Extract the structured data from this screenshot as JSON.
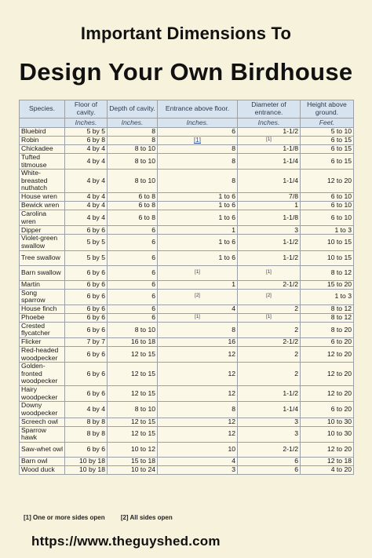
{
  "title_line1": "Important Dimensions To",
  "title_line2": "Design Your Own Birdhouse",
  "table": {
    "headers": [
      "Species.",
      "Floor of cavity.",
      "Depth of cavity.",
      "Entrance above floor.",
      "Diameter of entrance.",
      "Height above ground."
    ],
    "units": [
      "",
      "Inches.",
      "Inches.",
      "Inches.",
      "Inches.",
      "Feet."
    ],
    "rows": [
      {
        "species": "Bluebird",
        "floor": "5 by 5",
        "depth": "8",
        "entrance": "6",
        "diameter": "1-1/2",
        "height": "5 to 10",
        "lines": 1
      },
      {
        "species": "Robin",
        "floor": "6 by 8",
        "depth": "8",
        "entrance": "[1]",
        "diameter": "[1]",
        "height": "6 to 15",
        "lines": 1
      },
      {
        "species": "Chickadee",
        "floor": "4 by 4",
        "depth": "8 to 10",
        "entrance": "8",
        "diameter": "1-1/8",
        "height": "6 to 15",
        "lines": 1
      },
      {
        "species": "Tufted titmouse",
        "floor": "4 by 4",
        "depth": "8 to 10",
        "entrance": "8",
        "diameter": "1-1/4",
        "height": "6 to 15",
        "lines": 2
      },
      {
        "species": "White-breasted nuthatch",
        "floor": "4 by 4",
        "depth": "8 to 10",
        "entrance": "8",
        "diameter": "1-1/4",
        "height": "12 to 20",
        "lines": 3
      },
      {
        "species": "House wren",
        "floor": "4 by 4",
        "depth": "6 to 8",
        "entrance": "1 to 6",
        "diameter": "7/8",
        "height": "6 to 10",
        "lines": 1
      },
      {
        "species": "Bewick wren",
        "floor": "4 by 4",
        "depth": "6 to 8",
        "entrance": "1 to 6",
        "diameter": "1",
        "height": "6 to 10",
        "lines": 1
      },
      {
        "species": "Carolina wren",
        "floor": "4 by 4",
        "depth": "6 to 8",
        "entrance": "1 to 6",
        "diameter": "1-1/8",
        "height": "6 to 10",
        "lines": 2
      },
      {
        "species": "Dipper",
        "floor": "6 by 6",
        "depth": "6",
        "entrance": "1",
        "diameter": "3",
        "height": "1 to 3",
        "lines": 1
      },
      {
        "species": "Violet-green swallow",
        "floor": "5 by 5",
        "depth": "6",
        "entrance": "1 to 6",
        "diameter": "1-1/2",
        "height": "10 to 15",
        "lines": 2
      },
      {
        "species": "Tree swallow",
        "floor": "5 by 5",
        "depth": "6",
        "entrance": "1 to 6",
        "diameter": "1-1/2",
        "height": "10 to 15",
        "lines": 2
      },
      {
        "species": "Barn swallow",
        "floor": "6 by 6",
        "depth": "6",
        "entrance": "[1]",
        "diameter": "[1]",
        "height": "8 to 12",
        "lines": 2
      },
      {
        "species": "Martin",
        "floor": "6 by 6",
        "depth": "6",
        "entrance": "1",
        "diameter": "2-1/2",
        "height": "15 to 20",
        "lines": 1
      },
      {
        "species": "Song sparrow",
        "floor": "6 by 6",
        "depth": "6",
        "entrance": "[2]",
        "diameter": "[2]",
        "height": "1 to 3",
        "lines": 2
      },
      {
        "species": "House finch",
        "floor": "6 by 6",
        "depth": "6",
        "entrance": "4",
        "diameter": "2",
        "height": "8 to 12",
        "lines": 1
      },
      {
        "species": "Phoebe",
        "floor": "6 by 6",
        "depth": "6",
        "entrance": "[1]",
        "diameter": "[1]",
        "height": "8 to 12",
        "lines": 1
      },
      {
        "species": "Crested flycatcher",
        "floor": "6 by 6",
        "depth": "8 to 10",
        "entrance": "8",
        "diameter": "2",
        "height": "8 to 20",
        "lines": 2
      },
      {
        "species": "Flicker",
        "floor": "7 by 7",
        "depth": "16 to 18",
        "entrance": "16",
        "diameter": "2-1/2",
        "height": "6 to 20",
        "lines": 1
      },
      {
        "species": "Red-headed woodpecker",
        "floor": "6 by 6",
        "depth": "12 to 15",
        "entrance": "12",
        "diameter": "2",
        "height": "12 to 20",
        "lines": 2
      },
      {
        "species": "Golden-fronted woodpecker",
        "floor": "6 by 6",
        "depth": "12 to 15",
        "entrance": "12",
        "diameter": "2",
        "height": "12 to 20",
        "lines": 3
      },
      {
        "species": "Hairy woodpecker",
        "floor": "6 by 6",
        "depth": "12 to 15",
        "entrance": "12",
        "diameter": "1-1/2",
        "height": "12 to 20",
        "lines": 2
      },
      {
        "species": "Downy woodpecker",
        "floor": "4 by 4",
        "depth": "8 to 10",
        "entrance": "8",
        "diameter": "1-1/4",
        "height": "6 to 20",
        "lines": 2
      },
      {
        "species": "Screech owl",
        "floor": "8 by 8",
        "depth": "12 to 15",
        "entrance": "12",
        "diameter": "3",
        "height": "10 to 30",
        "lines": 1
      },
      {
        "species": "Sparrow hawk",
        "floor": "8 by 8",
        "depth": "12 to 15",
        "entrance": "12",
        "diameter": "3",
        "height": "10 to 30",
        "lines": 2
      },
      {
        "species": "Saw-whet owl",
        "floor": "6 by 6",
        "depth": "10 to 12",
        "entrance": "10",
        "diameter": "2-1/2",
        "height": "12 to 20",
        "lines": 2
      },
      {
        "species": "Barn owl",
        "floor": "10 by 18",
        "depth": "15 to 18",
        "entrance": "4",
        "diameter": "6",
        "height": "12 to 18",
        "lines": 1
      },
      {
        "species": "Wood duck",
        "floor": "10 by 18",
        "depth": "10 to 24",
        "entrance": "3",
        "diameter": "6",
        "height": "4 to 20",
        "lines": 1
      }
    ]
  },
  "footnotes": [
    "[1]  One or more sides open",
    "[2]  All sides open"
  ],
  "url": "https://www.theguyshed.com"
}
